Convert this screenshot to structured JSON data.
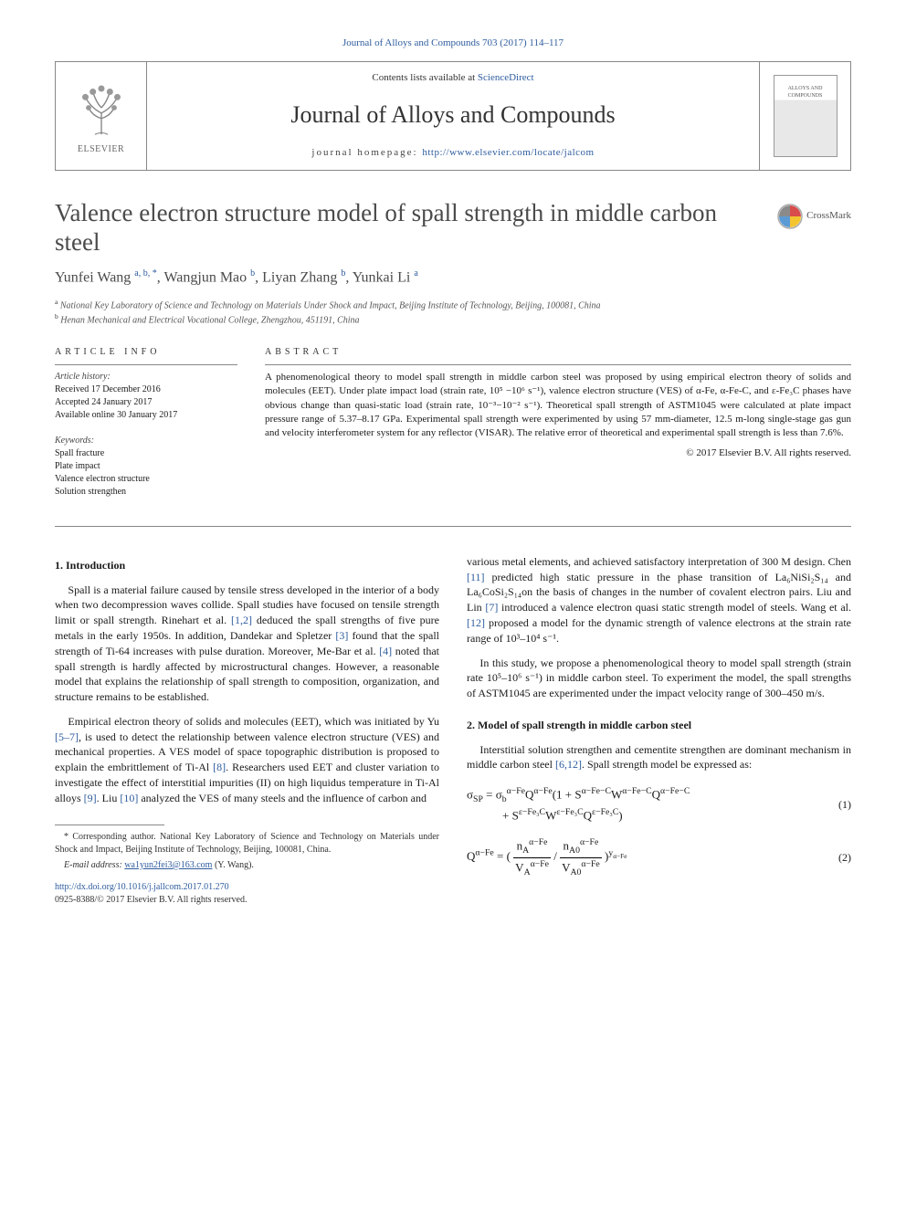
{
  "journal_ref": "Journal of Alloys and Compounds 703 (2017) 114–117",
  "header": {
    "contents_prefix": "Contents lists available at ",
    "contents_link": "ScienceDirect",
    "journal_title": "Journal of Alloys and Compounds",
    "homepage_prefix": "journal homepage: ",
    "homepage_link": "http://www.elsevier.com/locate/jalcom",
    "elsevier": "ELSEVIER",
    "cover_text": "ALLOYS AND COMPOUNDS"
  },
  "crossmark": "CrossMark",
  "title": "Valence electron structure model of spall strength in middle carbon steel",
  "authors_html": "Yunfei Wang <sup>a, b, *</sup>, Wangjun Mao <sup>b</sup>, Liyan Zhang <sup>b</sup>, Yunkai Li <sup>a</sup>",
  "affiliations": {
    "a": "National Key Laboratory of Science and Technology on Materials Under Shock and Impact, Beijing Institute of Technology, Beijing, 100081, China",
    "b": "Henan Mechanical and Electrical Vocational College, Zhengzhou, 451191, China"
  },
  "article_info": {
    "heading": "ARTICLE INFO",
    "history_label": "Article history:",
    "received": "Received 17 December 2016",
    "accepted": "Accepted 24 January 2017",
    "online": "Available online 30 January 2017",
    "keywords_label": "Keywords:",
    "keywords": [
      "Spall fracture",
      "Plate impact",
      "Valence electron structure",
      "Solution strengthen"
    ]
  },
  "abstract": {
    "heading": "ABSTRACT",
    "body": "A phenomenological theory to model spall strength in middle carbon steel was proposed by using empirical electron theory of solids and molecules (EET). Under plate impact load (strain rate, 10⁵ −10⁶ s⁻¹), valence electron structure (VES) of α-Fe, α-Fe-C, and ε-Fe₃C phases have obvious change than quasi-static load (strain rate, 10⁻³−10⁻² s⁻¹). Theoretical spall strength of ASTM1045 were calculated at plate impact pressure range of 5.37–8.17 GPa. Experimental spall strength were experimented by using 57 mm-diameter, 12.5 m-long single-stage gas gun and velocity interferometer system for any reflector (VISAR). The relative error of theoretical and experimental spall strength is less than 7.6%.",
    "copyright": "© 2017 Elsevier B.V. All rights reserved."
  },
  "sections": {
    "s1_heading": "1. Introduction",
    "s1_p1": "Spall is a material failure caused by tensile stress developed in the interior of a body when two decompression waves collide. Spall studies have focused on tensile strength limit or spall strength. Rinehart et al. [1,2] deduced the spall strengths of five pure metals in the early 1950s. In addition, Dandekar and Spletzer [3] found that the spall strength of Ti-64 increases with pulse duration. Moreover, Me-Bar et al. [4] noted that spall strength is hardly affected by microstructural changes. However, a reasonable model that explains the relationship of spall strength to composition, organization, and structure remains to be established.",
    "s1_p2": "Empirical electron theory of solids and molecules (EET), which was initiated by Yu [5–7], is used to detect the relationship between valence electron structure (VES) and mechanical properties. A VES model of space topographic distribution is proposed to explain the embrittlement of Ti-Al [8]. Researchers used EET and cluster variation to investigate the effect of interstitial impurities (II) on high liquidus temperature in Ti-Al alloys [9]. Liu [10] analyzed the VES of many steels and the influence of carbon and various metal elements, and achieved satisfactory interpretation of 300 M design. Chen [11] predicted high static pressure in the phase transition of La₆NiSi₂S₁₄ and La₆CoSi₂S₁₄on the basis of changes in the number of covalent electron pairs. Liu and Lin [7] introduced a valence electron quasi static strength model of steels. Wang et al. [12] proposed a model for the dynamic strength of valence electrons at the strain rate range of 10³–10⁴ s⁻¹.",
    "s1_p3": "In this study, we propose a phenomenological theory to model spall strength (strain rate 10⁵–10⁶ s⁻¹) in middle carbon steel. To experiment the model, the spall strengths of ASTM1045 are experimented under the impact velocity range of 300–450 m/s.",
    "s2_heading": "2. Model of spall strength in middle carbon steel",
    "s2_p1": "Interstitial solution strengthen and cementite strengthen are dominant mechanism in middle carbon steel [6,12]. Spall strength model be expressed as:"
  },
  "equations": {
    "eq1_num": "(1)",
    "eq2_num": "(2)"
  },
  "footnotes": {
    "corr": "* Corresponding author. National Key Laboratory of Science and Technology on Materials under Shock and Impact, Beijing Institute of Technology, Beijing, 100081, China.",
    "email_label": "E-mail address: ",
    "email": "wa1yun2fei3@163.com",
    "email_suffix": " (Y. Wang)."
  },
  "doi": {
    "link": "http://dx.doi.org/10.1016/j.jallcom.2017.01.270",
    "issn": "0925-8388/© 2017 Elsevier B.V. All rights reserved."
  },
  "colors": {
    "link": "#2e5c9e",
    "rule": "#888888",
    "heading": "#4a4a4a"
  }
}
